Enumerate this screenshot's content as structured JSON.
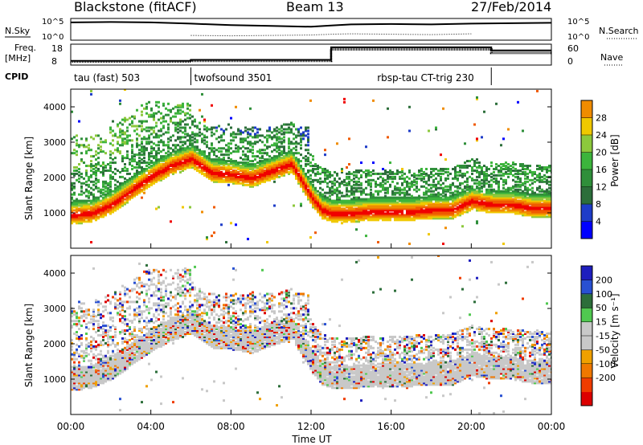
{
  "header": {
    "title": "Blackstone (fitACF)",
    "beam": "Beam 13",
    "date": "27/Feb/2014"
  },
  "panel_labels": {
    "nsky": "N.Sky",
    "nsearch": "N.Search",
    "freq_line1": "Freq.",
    "freq_line2": "[MHz]",
    "nave": "Nave",
    "cpid": "CPID"
  },
  "cpid_segments": [
    {
      "label": "tau (fast) 503",
      "start": 0,
      "end": 6
    },
    {
      "label": "twofsound 3501",
      "start": 6,
      "end": 21
    },
    {
      "label": "rbsp-tau CT-trig 230",
      "start": 21,
      "end": 24
    }
  ],
  "colors": {
    "power": [
      "#0000ff",
      "#1e3cc8",
      "#2c6e3a",
      "#2f8f3a",
      "#3cb43c",
      "#8cc83c",
      "#f0c800",
      "#f08c00",
      "#f05a00",
      "#f00000"
    ],
    "velocity": [
      "#1e1ebe",
      "#2850d2",
      "#2c6e3a",
      "#50c850",
      "#c8c8c8",
      "#c8c8c8",
      "#f0a000",
      "#f07800",
      "#f03c00",
      "#dc0000"
    ]
  },
  "chart_data": [
    {
      "type": "line",
      "title": "N.Sky / N.Search",
      "ylabel_left": "N.Sky",
      "ylabel_right": "N.Search",
      "left_ticks": [
        "10^5",
        "10^0"
      ],
      "right_ticks": [
        "10^5",
        "10^0"
      ],
      "x": [
        0,
        2,
        4,
        6,
        8,
        10,
        12,
        13,
        14,
        16,
        18,
        20,
        22,
        24
      ],
      "series": [
        {
          "name": "N.Sky",
          "values": [
            4.5,
            4.6,
            4.5,
            4.2,
            3.8,
            3.6,
            3.4,
            3.7,
            4.0,
            4.1,
            4.0,
            4.2,
            4.3,
            4.4
          ]
        },
        {
          "name": "N.Search",
          "values": [
            null,
            null,
            null,
            1.2,
            1.1,
            1.2,
            1.3,
            1.5,
            1.6,
            1.5,
            1.4,
            1.6,
            null,
            null
          ]
        }
      ]
    },
    {
      "type": "line",
      "title": "Freq / Nave",
      "left_ticks": [
        "18",
        "8"
      ],
      "right_ticks": [
        "60",
        "0"
      ],
      "x": [
        0,
        6,
        13,
        21,
        24
      ],
      "series": [
        {
          "name": "Freq.",
          "values": [
            10.0,
            10.5,
            16.5,
            15.0,
            15.0
          ]
        },
        {
          "name": "Nave",
          "values": [
            10,
            12,
            45,
            35,
            35
          ]
        }
      ]
    },
    {
      "type": "heatmap",
      "title": "Power",
      "ylabel": "Slant Range [km]",
      "xlabel": "Time UT",
      "colorbar_label": "Power [dB]",
      "colorbar_ticks": [
        "28",
        "24",
        "20",
        "16",
        "12",
        "8",
        "4"
      ],
      "y_ticks": [
        "1000",
        "2000",
        "3000",
        "4000"
      ],
      "ylim": [
        0,
        4500
      ],
      "xlim": [
        0,
        24
      ],
      "ridge": {
        "x": [
          0,
          1,
          2,
          3,
          4,
          5,
          6,
          7,
          8,
          9,
          10,
          11,
          12,
          12.5,
          13,
          14,
          15,
          16,
          17,
          18,
          19,
          20,
          21,
          22,
          23,
          24
        ],
        "y": [
          900,
          950,
          1200,
          1600,
          2000,
          2300,
          2500,
          2100,
          2050,
          1950,
          2150,
          2350,
          1400,
          1050,
          950,
          950,
          1000,
          1000,
          1000,
          1050,
          1050,
          1300,
          1200,
          1200,
          1100,
          1100
        ]
      }
    },
    {
      "type": "heatmap",
      "title": "Velocity",
      "ylabel": "Slant Range [km]",
      "xlabel": "Time UT",
      "colorbar_label": "Velocity [m s⁻¹]",
      "colorbar_ticks": [
        "200",
        "100",
        "50",
        "15",
        "-15",
        "-50",
        "-100",
        "-200"
      ],
      "y_ticks": [
        "1000",
        "2000",
        "3000",
        "4000"
      ],
      "x_ticks": [
        "00:00",
        "04:00",
        "08:00",
        "12:00",
        "16:00",
        "20:00",
        "00:00"
      ],
      "ylim": [
        0,
        4500
      ],
      "xlim": [
        0,
        24
      ]
    }
  ]
}
